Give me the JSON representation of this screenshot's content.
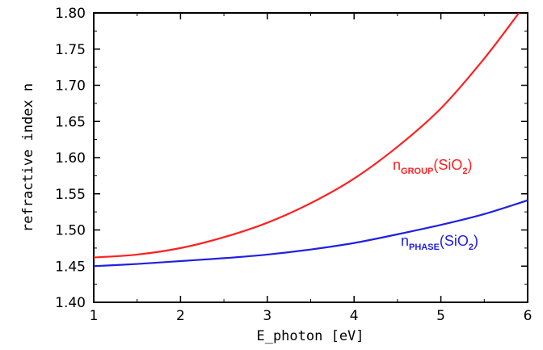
{
  "chart_data": {
    "type": "line",
    "title": "",
    "xlabel": "E_photon [eV]",
    "ylabel": "refractive index n",
    "xlim": [
      1,
      6
    ],
    "ylim": [
      1.4,
      1.8
    ],
    "x_ticks": [
      "1",
      "2",
      "3",
      "4",
      "5",
      "6"
    ],
    "y_ticks": [
      "1.40",
      "1.45",
      "1.50",
      "1.55",
      "1.60",
      "1.65",
      "1.70",
      "1.75",
      "1.80"
    ],
    "grid": false,
    "legend": "none",
    "series": [
      {
        "label_main": "n",
        "label_sub": "GROUP",
        "label_paren_open": "(SiO",
        "label_paren_sub": "2",
        "label_paren_close": ")",
        "color": "#ff2020",
        "x": [
          1.0,
          1.5,
          2.0,
          2.5,
          3.0,
          3.5,
          4.0,
          4.5,
          5.0,
          5.5,
          5.9
        ],
        "y": [
          1.462,
          1.466,
          1.475,
          1.49,
          1.51,
          1.537,
          1.571,
          1.615,
          1.668,
          1.737,
          1.8
        ]
      },
      {
        "label_main": "n",
        "label_sub": "PHASE",
        "label_paren_open": "(SiO",
        "label_paren_sub": "2",
        "label_paren_close": ")",
        "color": "#2020e0",
        "x": [
          1.0,
          1.5,
          2.0,
          2.5,
          3.0,
          3.5,
          4.0,
          4.5,
          5.0,
          5.5,
          6.0
        ],
        "y": [
          1.45,
          1.453,
          1.457,
          1.461,
          1.466,
          1.473,
          1.482,
          1.494,
          1.507,
          1.522,
          1.541
        ]
      }
    ]
  }
}
